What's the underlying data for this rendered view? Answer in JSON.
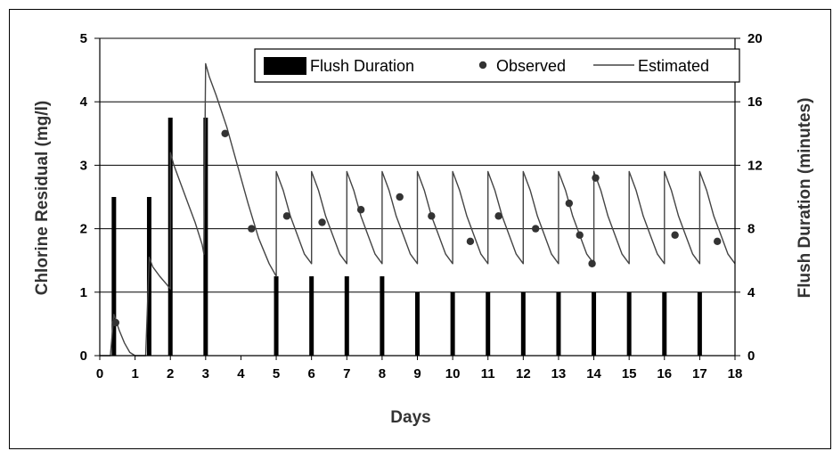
{
  "chart_data": {
    "type": "combo",
    "title": "",
    "xlabel": "Days",
    "ylabel_left": "Chlorine Residual (mg/l)",
    "ylabel_right": "Flush Duration (minutes)",
    "xlim": [
      0,
      18
    ],
    "ylim_left": [
      0,
      5
    ],
    "ylim_right": [
      0,
      20
    ],
    "x_ticks": [
      0,
      1,
      2,
      3,
      4,
      5,
      6,
      7,
      8,
      9,
      10,
      11,
      12,
      13,
      14,
      15,
      16,
      17,
      18
    ],
    "y_left_ticks": [
      0,
      1,
      2,
      3,
      4,
      5
    ],
    "y_right_ticks": [
      0,
      4,
      8,
      12,
      16,
      20
    ],
    "grid": "horizontal",
    "legend_position": "top-right",
    "legend": [
      "Flush Duration",
      "Observed",
      "Estimated"
    ],
    "series": [
      {
        "name": "Flush Duration",
        "type": "bar",
        "axis": "right",
        "x": [
          0.4,
          1.4,
          2.0,
          3.0,
          5.0,
          6.0,
          7.0,
          8.0,
          9.0,
          10.0,
          11.0,
          12.0,
          13.0,
          14.0,
          15.0,
          16.0,
          17.0
        ],
        "values": [
          10,
          10,
          15,
          15,
          5,
          5,
          5,
          5,
          4,
          4,
          4,
          4,
          4,
          4,
          4,
          4,
          4
        ]
      },
      {
        "name": "Observed",
        "type": "scatter",
        "axis": "left",
        "x": [
          0.45,
          3.55,
          4.3,
          5.3,
          6.3,
          7.4,
          8.5,
          9.4,
          10.5,
          11.3,
          12.35,
          13.3,
          13.6,
          13.95,
          14.05,
          16.3,
          17.5
        ],
        "values": [
          0.52,
          3.5,
          2.0,
          2.2,
          2.1,
          2.3,
          2.5,
          2.2,
          1.8,
          2.2,
          2.0,
          2.4,
          1.9,
          1.45,
          2.8,
          1.9,
          1.8
        ]
      },
      {
        "name": "Estimated",
        "type": "line",
        "axis": "left",
        "points": [
          [
            0.0,
            0.0
          ],
          [
            0.3,
            0.0
          ],
          [
            0.4,
            0.65
          ],
          [
            0.55,
            0.4
          ],
          [
            0.7,
            0.2
          ],
          [
            0.85,
            0.05
          ],
          [
            1.0,
            0.0
          ],
          [
            1.3,
            0.0
          ],
          [
            1.4,
            1.55
          ],
          [
            1.5,
            1.4
          ],
          [
            1.7,
            1.25
          ],
          [
            1.9,
            1.12
          ],
          [
            2.0,
            1.05
          ],
          [
            2.0,
            3.2
          ],
          [
            2.1,
            3.0
          ],
          [
            2.3,
            2.7
          ],
          [
            2.5,
            2.4
          ],
          [
            2.7,
            2.1
          ],
          [
            2.9,
            1.75
          ],
          [
            2.95,
            1.6
          ],
          [
            3.0,
            4.6
          ],
          [
            3.1,
            4.4
          ],
          [
            3.3,
            4.1
          ],
          [
            3.6,
            3.6
          ],
          [
            3.9,
            3.0
          ],
          [
            4.2,
            2.4
          ],
          [
            4.5,
            1.85
          ],
          [
            4.8,
            1.45
          ],
          [
            5.0,
            1.25
          ],
          [
            5.0,
            2.9
          ],
          [
            5.2,
            2.6
          ],
          [
            5.4,
            2.2
          ],
          [
            5.6,
            1.9
          ],
          [
            5.8,
            1.6
          ],
          [
            6.0,
            1.45
          ],
          [
            6.0,
            2.9
          ],
          [
            6.2,
            2.6
          ],
          [
            6.4,
            2.2
          ],
          [
            6.6,
            1.9
          ],
          [
            6.8,
            1.6
          ],
          [
            7.0,
            1.45
          ],
          [
            7.0,
            2.9
          ],
          [
            7.2,
            2.6
          ],
          [
            7.4,
            2.2
          ],
          [
            7.6,
            1.9
          ],
          [
            7.8,
            1.6
          ],
          [
            8.0,
            1.45
          ],
          [
            8.0,
            2.9
          ],
          [
            8.2,
            2.6
          ],
          [
            8.4,
            2.2
          ],
          [
            8.6,
            1.9
          ],
          [
            8.8,
            1.6
          ],
          [
            9.0,
            1.45
          ],
          [
            9.0,
            2.9
          ],
          [
            9.2,
            2.6
          ],
          [
            9.4,
            2.2
          ],
          [
            9.6,
            1.9
          ],
          [
            9.8,
            1.6
          ],
          [
            10.0,
            1.45
          ],
          [
            10.0,
            2.9
          ],
          [
            10.2,
            2.6
          ],
          [
            10.4,
            2.2
          ],
          [
            10.6,
            1.9
          ],
          [
            10.8,
            1.6
          ],
          [
            11.0,
            1.45
          ],
          [
            11.0,
            2.9
          ],
          [
            11.2,
            2.6
          ],
          [
            11.4,
            2.2
          ],
          [
            11.6,
            1.9
          ],
          [
            11.8,
            1.6
          ],
          [
            12.0,
            1.45
          ],
          [
            12.0,
            2.9
          ],
          [
            12.2,
            2.6
          ],
          [
            12.4,
            2.2
          ],
          [
            12.6,
            1.9
          ],
          [
            12.8,
            1.6
          ],
          [
            13.0,
            1.45
          ],
          [
            13.0,
            2.9
          ],
          [
            13.2,
            2.6
          ],
          [
            13.4,
            2.2
          ],
          [
            13.6,
            1.9
          ],
          [
            13.8,
            1.6
          ],
          [
            14.0,
            1.45
          ],
          [
            14.0,
            2.9
          ],
          [
            14.2,
            2.6
          ],
          [
            14.4,
            2.2
          ],
          [
            14.6,
            1.9
          ],
          [
            14.8,
            1.6
          ],
          [
            15.0,
            1.45
          ],
          [
            15.0,
            2.9
          ],
          [
            15.2,
            2.6
          ],
          [
            15.4,
            2.2
          ],
          [
            15.6,
            1.9
          ],
          [
            15.8,
            1.6
          ],
          [
            16.0,
            1.45
          ],
          [
            16.0,
            2.9
          ],
          [
            16.2,
            2.6
          ],
          [
            16.4,
            2.2
          ],
          [
            16.6,
            1.9
          ],
          [
            16.8,
            1.6
          ],
          [
            17.0,
            1.45
          ],
          [
            17.0,
            2.9
          ],
          [
            17.2,
            2.6
          ],
          [
            17.4,
            2.2
          ],
          [
            17.6,
            1.9
          ],
          [
            17.8,
            1.6
          ],
          [
            18.0,
            1.45
          ]
        ]
      }
    ]
  },
  "colors": {
    "bar": "#000000",
    "marker": "#333333",
    "line": "#444444",
    "grid": "#000000"
  }
}
